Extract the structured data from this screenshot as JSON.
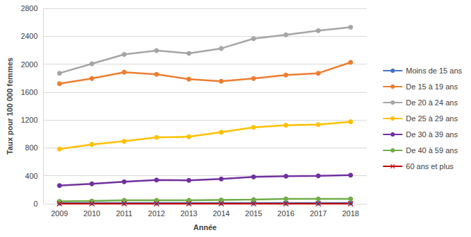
{
  "chart_data": {
    "type": "line",
    "x_label": "Année",
    "y_label": "Taux pour 100 000 femmes",
    "categories": [
      "2009",
      "2010",
      "2011",
      "2012",
      "2013",
      "2014",
      "2015",
      "2016",
      "2017",
      "2018"
    ],
    "ylim": [
      0,
      2800
    ],
    "yticks": [
      0,
      400,
      800,
      1200,
      1600,
      2000,
      2400,
      2800
    ],
    "grid": true,
    "legend": "right",
    "series": [
      {
        "name": "Moins de 15 ans",
        "color": "#4472c4",
        "marker": "circle",
        "values": [
          10,
          10,
          10,
          10,
          10,
          10,
          10,
          10,
          10,
          10
        ]
      },
      {
        "name": "De 15 à 19 ans",
        "color": "#ed7d31",
        "marker": "circle",
        "values": [
          1720,
          1795,
          1885,
          1855,
          1785,
          1755,
          1795,
          1845,
          1870,
          2025
        ]
      },
      {
        "name": "De 20 à 24 ans",
        "color": "#a5a5a5",
        "marker": "circle",
        "values": [
          1870,
          2005,
          2140,
          2195,
          2155,
          2225,
          2365,
          2420,
          2480,
          2530
        ]
      },
      {
        "name": "De 25 à 29 ans",
        "color": "#ffc000",
        "marker": "circle",
        "values": [
          785,
          850,
          895,
          950,
          960,
          1025,
          1095,
          1125,
          1135,
          1175
        ]
      },
      {
        "name": "De 30 à 39 ans",
        "color": "#7030a0",
        "marker": "circle",
        "values": [
          260,
          285,
          315,
          340,
          335,
          355,
          385,
          395,
          400,
          410
        ]
      },
      {
        "name": "De 40 à 59 ans",
        "color": "#70ad47",
        "marker": "circle",
        "values": [
          35,
          40,
          50,
          50,
          50,
          55,
          60,
          70,
          70,
          70
        ]
      },
      {
        "name": "60 ans et plus",
        "color": "#c00000",
        "marker": "x",
        "values": [
          1,
          1,
          1,
          1,
          1,
          1,
          1,
          1,
          1,
          1
        ]
      }
    ]
  }
}
